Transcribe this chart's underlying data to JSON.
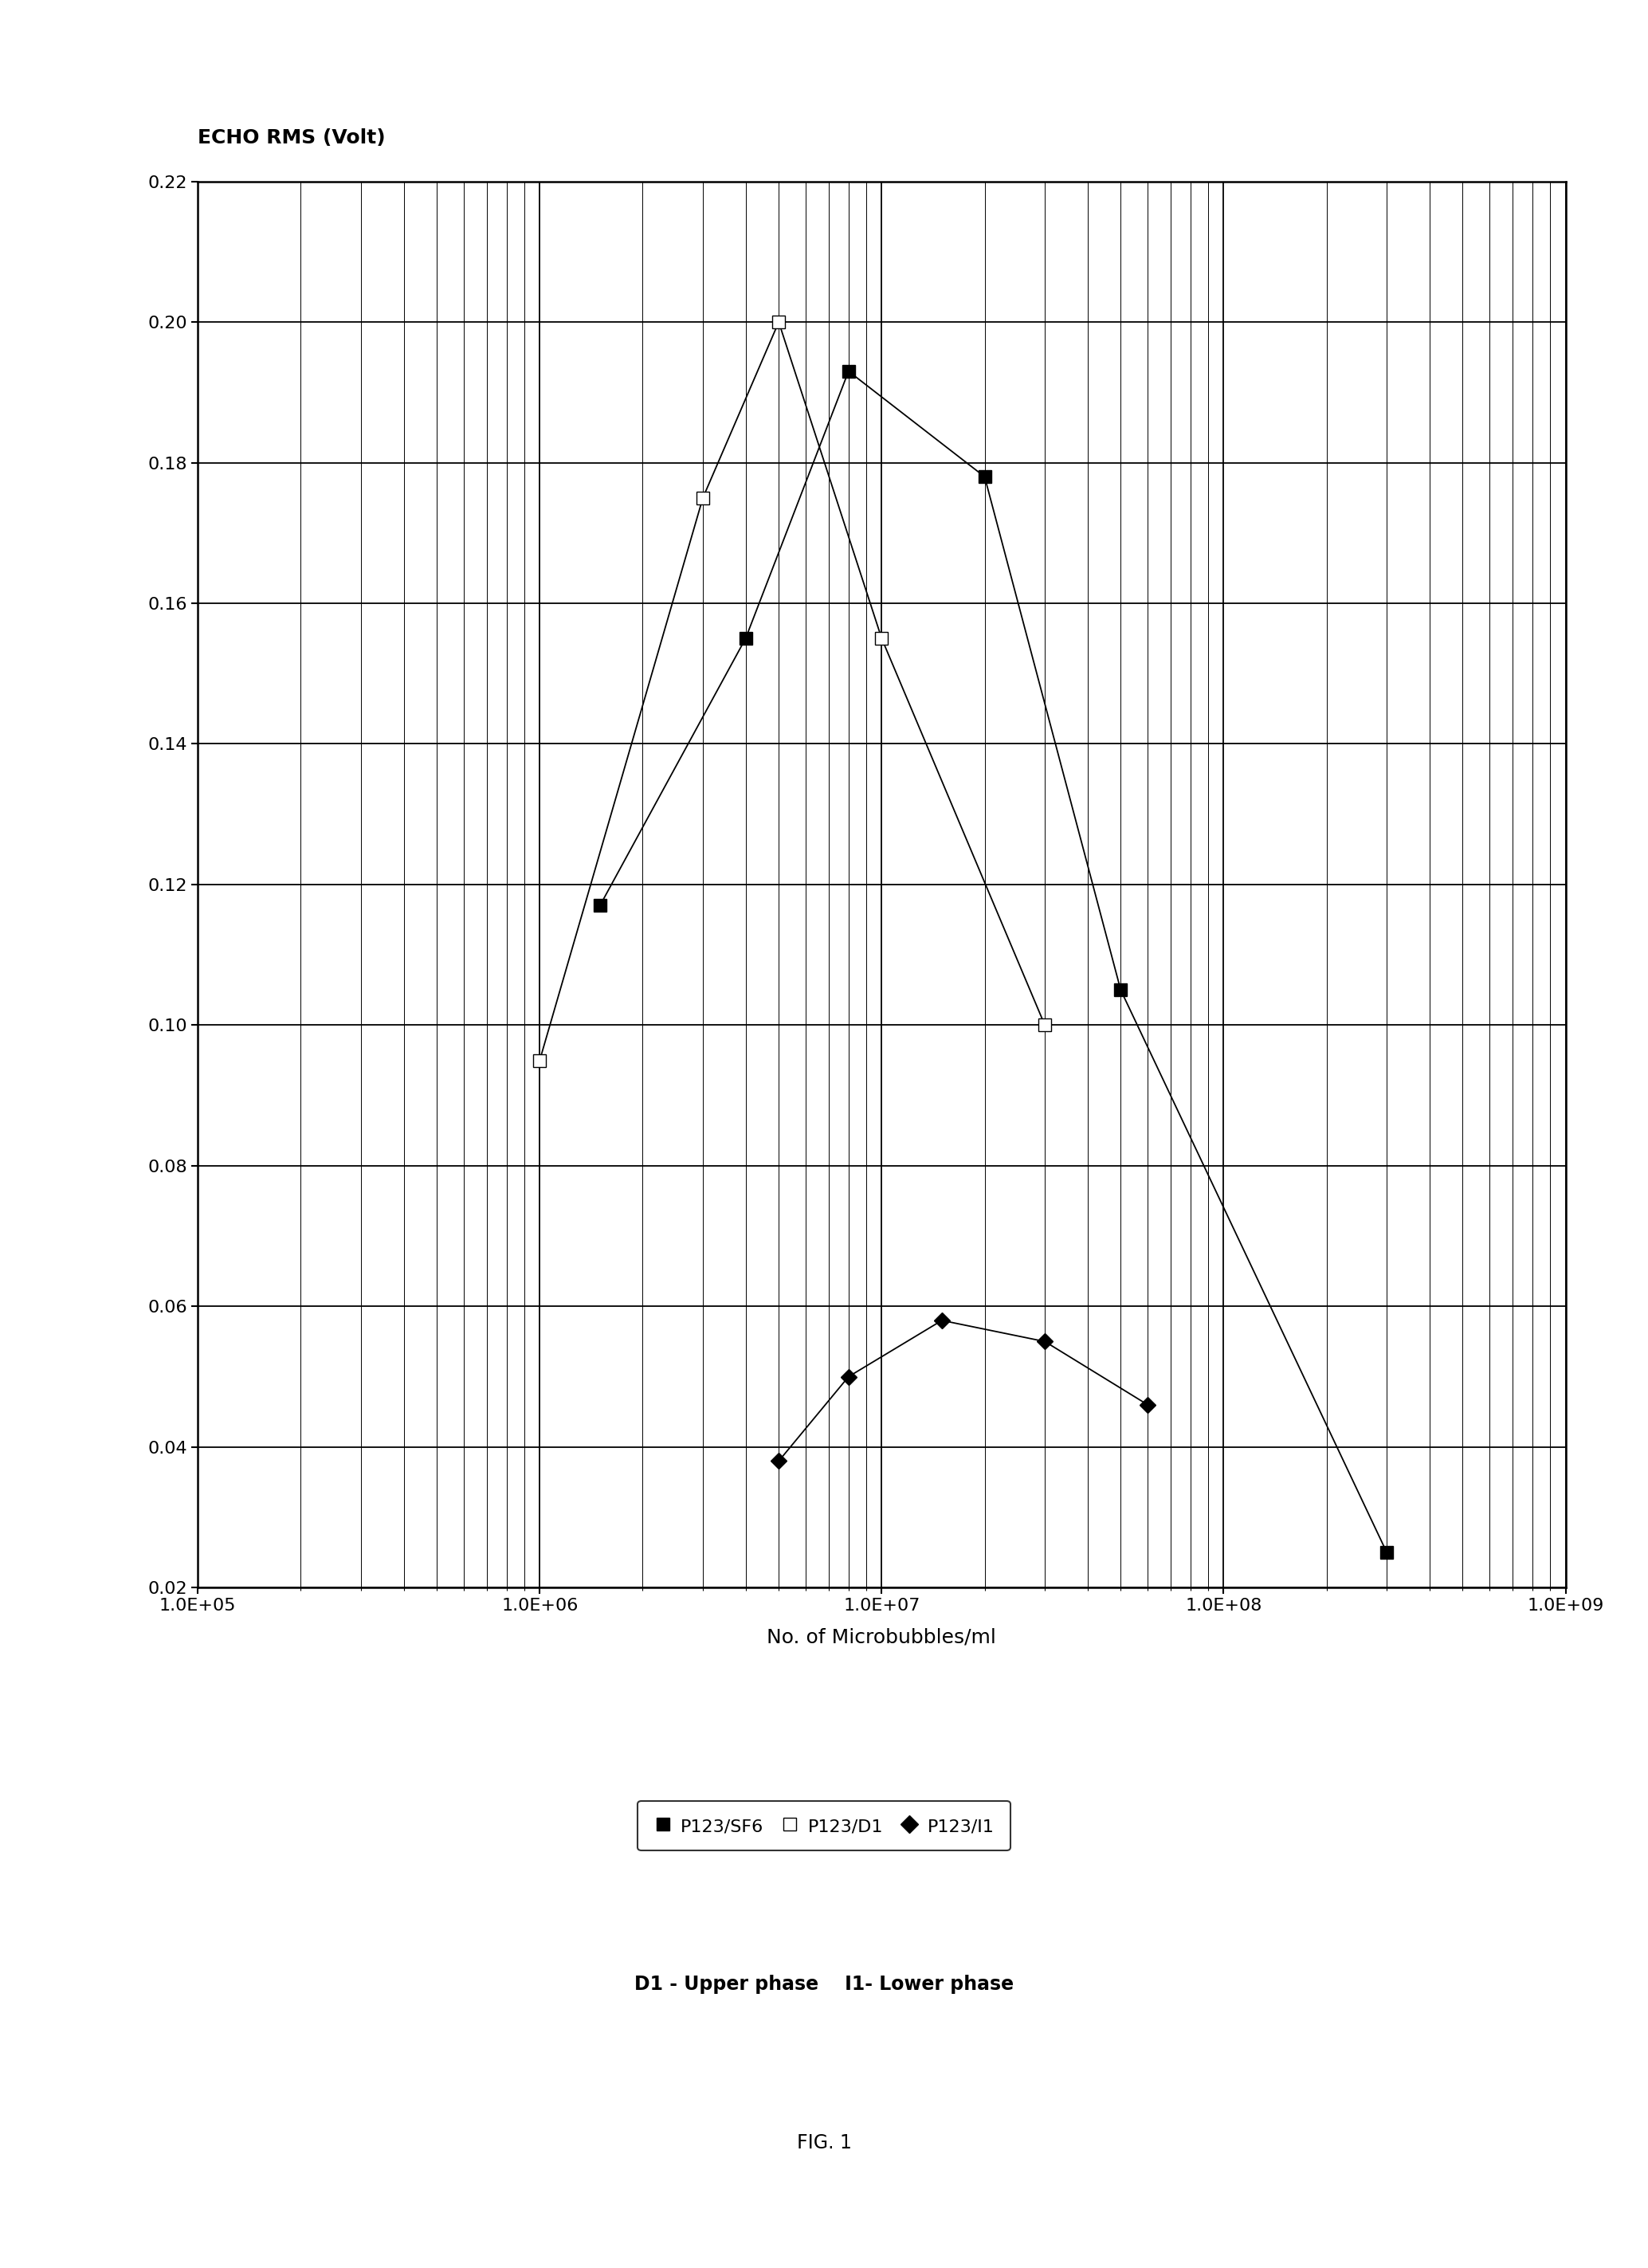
{
  "title": "ECHO RMS (Volt)",
  "xlabel": "No. of Microbubbles/ml",
  "series": [
    {
      "label": "P123/SF6",
      "x": [
        1500000.0,
        4000000.0,
        8000000.0,
        20000000.0,
        50000000.0,
        300000000.0
      ],
      "y": [
        0.117,
        0.155,
        0.193,
        0.178,
        0.105,
        0.025
      ]
    },
    {
      "label": "P123/D1",
      "x": [
        1000000.0,
        3000000.0,
        5000000.0,
        10000000.0,
        30000000.0
      ],
      "y": [
        0.095,
        0.175,
        0.2,
        0.155,
        0.1
      ]
    },
    {
      "label": "P123/I1",
      "x": [
        5000000.0,
        8000000.0,
        15000000.0,
        30000000.0,
        60000000.0
      ],
      "y": [
        0.038,
        0.05,
        0.058,
        0.055,
        0.046
      ]
    }
  ],
  "xlim_log": [
    100000.0,
    1000000000.0
  ],
  "ylim": [
    0.02,
    0.22
  ],
  "yticks": [
    0.02,
    0.04,
    0.06,
    0.08,
    0.1,
    0.12,
    0.14,
    0.16,
    0.18,
    0.2,
    0.22
  ],
  "xticks_major": [
    100000.0,
    1000000.0,
    10000000.0,
    100000000.0,
    1000000000.0
  ],
  "xtick_labels": [
    "1.0E+05",
    "1.0E+06",
    "1.0E+07",
    "1.0E+08",
    "1.0E+09"
  ],
  "background_color": "#ffffff",
  "subtitle": "D1 - Upper phase    I1- Lower phase",
  "fig_label": "FIG. 1",
  "legend_entries": [
    "P123/SF6",
    "P123/D1",
    "P123/I1"
  ]
}
